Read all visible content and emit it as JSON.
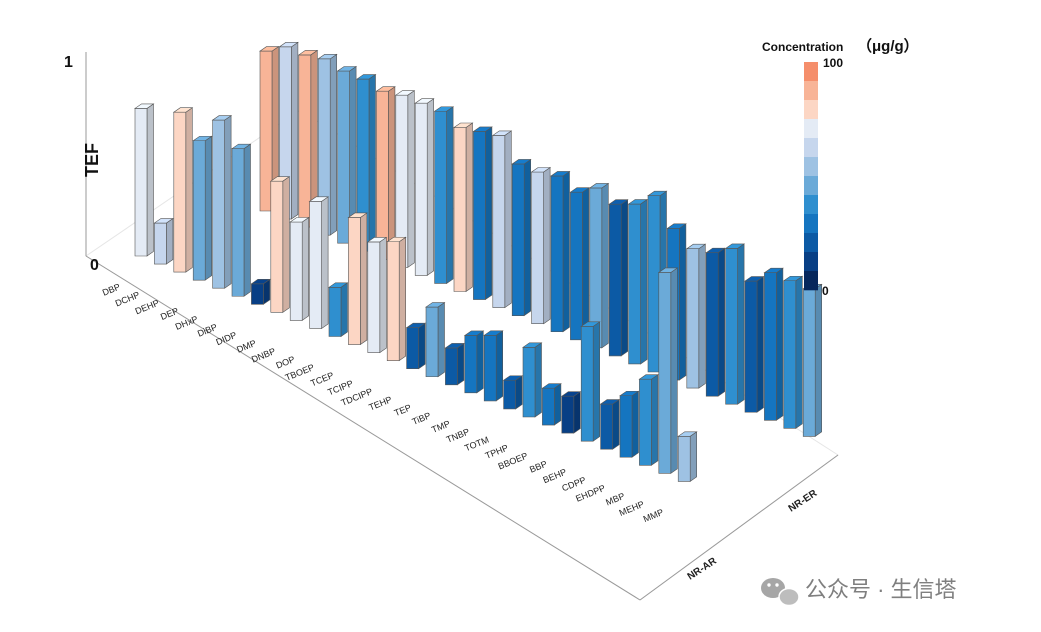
{
  "chart_data": {
    "type": "bar3d",
    "ylabel": "TEF",
    "yticks": [
      "0",
      "1"
    ],
    "ylim": [
      0,
      1
    ],
    "rows": [
      "NR-AR",
      "NR-ER"
    ],
    "categories": [
      "DBP",
      "DCHP",
      "DEHP",
      "DEP",
      "DHxP",
      "DiBP",
      "DIDP",
      "DMP",
      "DNBP",
      "DOP",
      "TBOEP",
      "TCEP",
      "TCIPP",
      "TDCIPP",
      "TEHP",
      "TEP",
      "TiBP",
      "TMP",
      "TNBP",
      "TOTM",
      "TPHP",
      "BBOEP",
      "BBP",
      "BEHP",
      "CDPP",
      "EHDPP",
      "MBP",
      "MEHP",
      "MMP"
    ],
    "series": [
      {
        "row": "NR-AR",
        "tef": [
          0.72,
          0.2,
          0.78,
          0.68,
          0.82,
          0.72,
          0.1,
          0.64,
          0.48,
          0.62,
          0.24,
          0.62,
          0.54,
          0.58,
          0.2,
          0.34,
          0.18,
          0.28,
          0.32,
          0.14,
          0.34,
          0.18,
          0.18,
          0.56,
          0.22,
          0.3,
          0.42,
          0.98,
          0.22
        ],
        "concentration": [
          70,
          65,
          85,
          50,
          55,
          45,
          10,
          85,
          70,
          70,
          35,
          80,
          75,
          85,
          20,
          45,
          15,
          30,
          30,
          15,
          40,
          30,
          5,
          40,
          20,
          25,
          35,
          50,
          55
        ]
      },
      {
        "row": "NR-ER",
        "tef": [
          0.78,
          0.84,
          0.84,
          0.86,
          0.84,
          0.84,
          0.82,
          0.84,
          0.84,
          0.84,
          0.8,
          0.82,
          0.84,
          0.74,
          0.74,
          0.76,
          0.72,
          0.78,
          0.74,
          0.78,
          0.86,
          0.74,
          0.68,
          0.7,
          0.76,
          0.64,
          0.72,
          0.72,
          0.72
        ],
        "concentration": [
          95,
          60,
          90,
          55,
          50,
          40,
          95,
          75,
          70,
          40,
          80,
          30,
          65,
          30,
          60,
          30,
          30,
          50,
          15,
          35,
          35,
          25,
          55,
          20,
          40,
          15,
          30,
          40,
          50
        ]
      }
    ],
    "legend": {
      "title": "Concentration",
      "unit": "（μg/g）",
      "max_label": "100",
      "min_label": "0",
      "colors": [
        "#f58e6b",
        "#f8b497",
        "#fcd6c4",
        "#e4ebf5",
        "#c6d6ed",
        "#9ec2e3",
        "#6baad8",
        "#2f8fcf",
        "#1575c0",
        "#0c5aa5",
        "#083f85",
        "#06275c"
      ]
    }
  },
  "watermark": {
    "icon": "wechat-icon",
    "text": "公众号 · 生信塔"
  }
}
